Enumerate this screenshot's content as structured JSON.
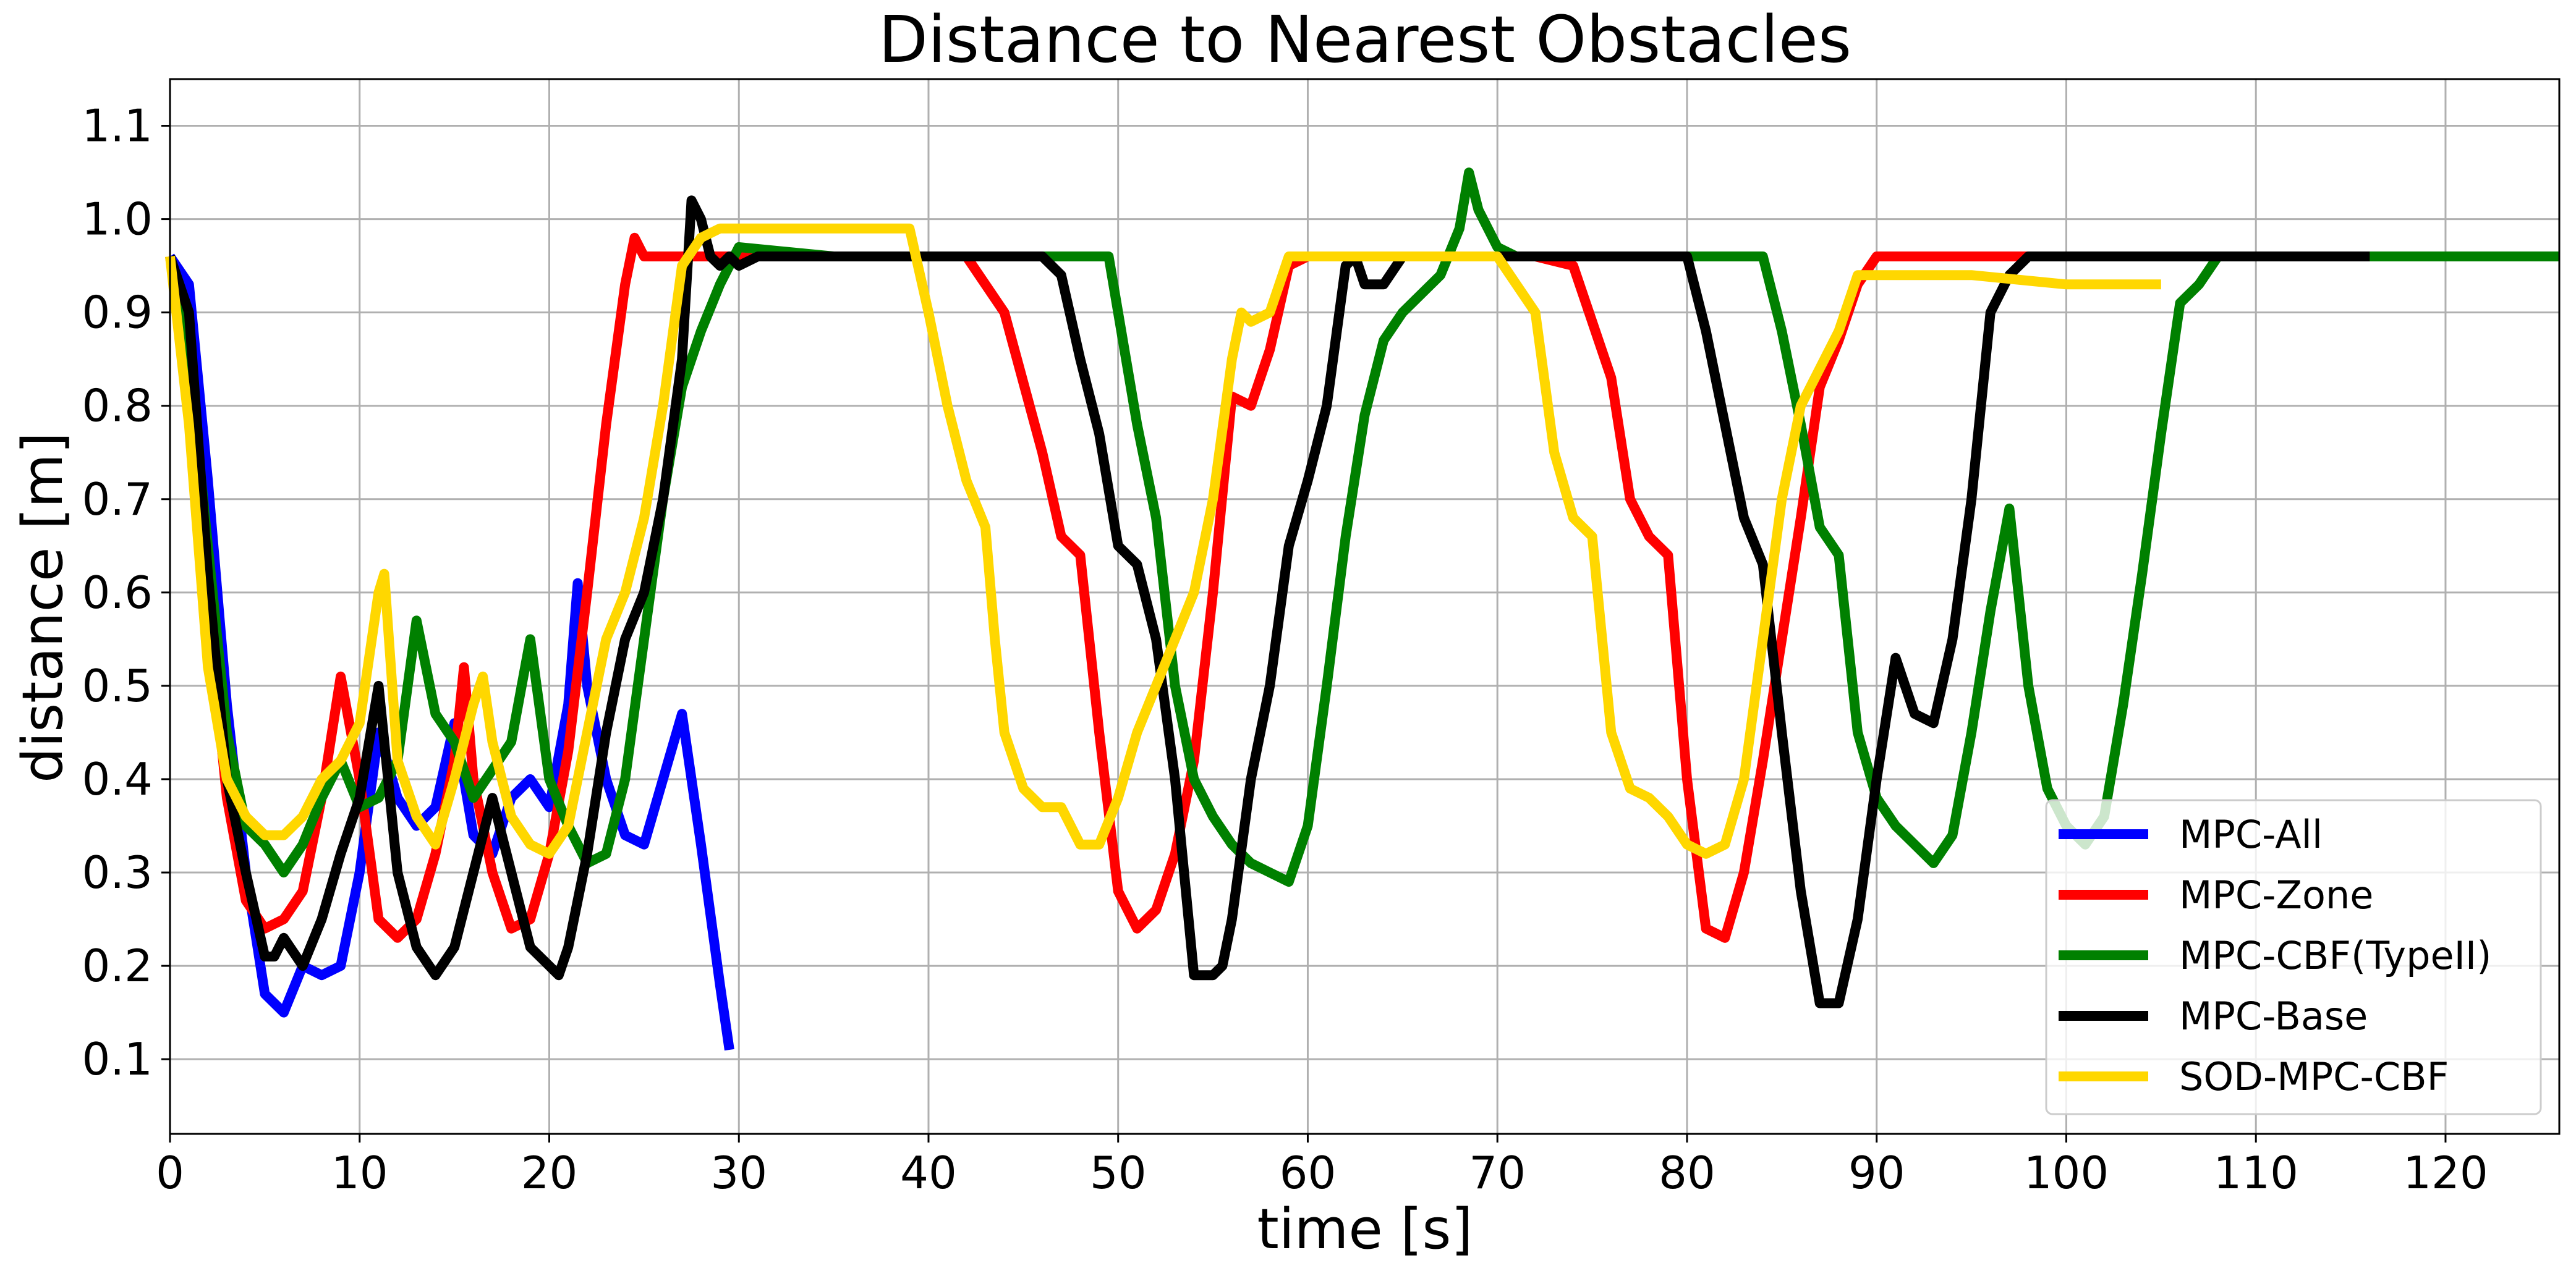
{
  "chart_data": {
    "type": "line",
    "title": "Distance to Nearest Obstacles",
    "xlabel": "time [s]",
    "ylabel": "distance [m]",
    "xlim": [
      0,
      126
    ],
    "ylim": [
      0.02,
      1.15
    ],
    "xticks": [
      0,
      10,
      20,
      30,
      40,
      50,
      60,
      70,
      80,
      90,
      100,
      110,
      120
    ],
    "yticks": [
      0.1,
      0.2,
      0.3,
      0.4,
      0.5,
      0.6,
      0.7,
      0.8,
      0.9,
      1.0,
      1.1
    ],
    "ytick_labels": [
      "0.1",
      "0.2",
      "0.3",
      "0.4",
      "0.5",
      "0.6",
      "0.7",
      "0.8",
      "0.9",
      "1.0",
      "1.1"
    ],
    "grid": true,
    "legend_position": "bottom-right",
    "series": [
      {
        "name": "MPC-All",
        "color": "#0000ff",
        "x": [
          0,
          1,
          2,
          3,
          4,
          5,
          6,
          7,
          8,
          9,
          10,
          11,
          12,
          13,
          14,
          15,
          16,
          17,
          18,
          19,
          20,
          21,
          21.5,
          22,
          23,
          24,
          25,
          26,
          27,
          28,
          29,
          29.5
        ],
        "y": [
          0.96,
          0.93,
          0.72,
          0.48,
          0.3,
          0.17,
          0.15,
          0.2,
          0.19,
          0.2,
          0.3,
          0.45,
          0.38,
          0.35,
          0.37,
          0.46,
          0.34,
          0.32,
          0.38,
          0.4,
          0.37,
          0.48,
          0.61,
          0.5,
          0.4,
          0.34,
          0.33,
          0.4,
          0.47,
          0.33,
          0.18,
          0.11
        ]
      },
      {
        "name": "MPC-Zone",
        "color": "#ff0000",
        "x": [
          0,
          1,
          2,
          3,
          4,
          5,
          6,
          7,
          8,
          9,
          10,
          11,
          12,
          13,
          14,
          15,
          15.5,
          16,
          17,
          18,
          19,
          20,
          21,
          22,
          23,
          24,
          24.5,
          25,
          30,
          39,
          42,
          44,
          46,
          47,
          48,
          49,
          50,
          51,
          52,
          53,
          54,
          55,
          56,
          57,
          58,
          59,
          60,
          62,
          70,
          72,
          74,
          76,
          77,
          78,
          79,
          80,
          81,
          82,
          83,
          84,
          85,
          86,
          87,
          88,
          89,
          90,
          100,
          116
        ],
        "y": [
          0.96,
          0.82,
          0.58,
          0.38,
          0.27,
          0.24,
          0.25,
          0.28,
          0.38,
          0.51,
          0.4,
          0.25,
          0.23,
          0.25,
          0.32,
          0.42,
          0.52,
          0.4,
          0.3,
          0.24,
          0.25,
          0.32,
          0.43,
          0.6,
          0.78,
          0.93,
          0.98,
          0.96,
          0.96,
          0.96,
          0.96,
          0.9,
          0.75,
          0.66,
          0.64,
          0.45,
          0.28,
          0.24,
          0.26,
          0.32,
          0.42,
          0.6,
          0.81,
          0.8,
          0.86,
          0.95,
          0.96,
          0.96,
          0.96,
          0.96,
          0.95,
          0.83,
          0.7,
          0.66,
          0.64,
          0.4,
          0.24,
          0.23,
          0.3,
          0.42,
          0.55,
          0.68,
          0.82,
          0.87,
          0.93,
          0.96,
          0.96,
          0.96
        ]
      },
      {
        "name": "MPC-CBF(TypeII)",
        "color": "#008000",
        "x": [
          0,
          1,
          2,
          3,
          4,
          5,
          6,
          7,
          8,
          9,
          10,
          11,
          12,
          13,
          14,
          15,
          16,
          17,
          18,
          19,
          20,
          21,
          22,
          23,
          24,
          25,
          26,
          27,
          28,
          29,
          30,
          35,
          40,
          45,
          49.5,
          50,
          51,
          52,
          53,
          54,
          55,
          56,
          57,
          58,
          59,
          60,
          61,
          62,
          63,
          64,
          65,
          66,
          67,
          68,
          68.5,
          69,
          70,
          71,
          72,
          75,
          80,
          84,
          85,
          86,
          87,
          88,
          89,
          90,
          91,
          92,
          93,
          94,
          95,
          96,
          97,
          98,
          99,
          100,
          101,
          102,
          103,
          104,
          105,
          106,
          107,
          108,
          110,
          116,
          126
        ],
        "y": [
          0.96,
          0.85,
          0.65,
          0.45,
          0.35,
          0.33,
          0.3,
          0.33,
          0.38,
          0.42,
          0.37,
          0.38,
          0.42,
          0.57,
          0.47,
          0.44,
          0.38,
          0.41,
          0.44,
          0.55,
          0.4,
          0.35,
          0.31,
          0.32,
          0.4,
          0.55,
          0.7,
          0.82,
          0.88,
          0.93,
          0.97,
          0.96,
          0.96,
          0.96,
          0.96,
          0.9,
          0.78,
          0.68,
          0.5,
          0.4,
          0.36,
          0.33,
          0.31,
          0.3,
          0.29,
          0.35,
          0.5,
          0.66,
          0.79,
          0.87,
          0.9,
          0.92,
          0.94,
          0.99,
          1.05,
          1.01,
          0.97,
          0.96,
          0.96,
          0.96,
          0.96,
          0.96,
          0.88,
          0.78,
          0.67,
          0.64,
          0.45,
          0.38,
          0.35,
          0.33,
          0.31,
          0.34,
          0.45,
          0.58,
          0.69,
          0.5,
          0.39,
          0.35,
          0.33,
          0.36,
          0.48,
          0.62,
          0.77,
          0.91,
          0.93,
          0.96,
          0.96,
          0.96,
          0.96
        ]
      },
      {
        "name": "MPC-Base",
        "color": "#000000",
        "x": [
          0,
          1,
          2,
          3,
          4,
          5,
          5.5,
          6,
          7,
          8,
          9,
          10,
          11,
          12,
          13,
          14,
          15,
          16,
          17,
          18,
          19,
          20,
          20.5,
          21,
          22,
          23,
          24,
          25,
          26,
          27,
          27.5,
          28,
          28.5,
          29,
          29.5,
          30,
          31,
          40,
          46,
          47,
          48,
          49,
          50,
          51,
          52,
          53,
          54,
          55,
          55.5,
          56,
          57,
          58,
          59,
          60,
          61,
          62,
          62.5,
          63,
          64,
          65,
          66,
          70,
          80,
          81,
          82,
          83,
          84,
          85,
          86,
          87,
          88,
          89,
          90,
          91,
          92,
          93,
          94,
          95,
          96,
          97,
          98,
          100,
          116
        ],
        "y": [
          0.96,
          0.9,
          0.62,
          0.4,
          0.3,
          0.21,
          0.21,
          0.23,
          0.2,
          0.25,
          0.32,
          0.38,
          0.5,
          0.3,
          0.22,
          0.19,
          0.22,
          0.3,
          0.38,
          0.3,
          0.22,
          0.2,
          0.19,
          0.22,
          0.32,
          0.45,
          0.55,
          0.6,
          0.7,
          0.85,
          1.02,
          1.0,
          0.96,
          0.95,
          0.96,
          0.95,
          0.96,
          0.96,
          0.96,
          0.94,
          0.85,
          0.77,
          0.65,
          0.63,
          0.55,
          0.4,
          0.19,
          0.19,
          0.2,
          0.25,
          0.4,
          0.5,
          0.65,
          0.72,
          0.8,
          0.95,
          0.96,
          0.93,
          0.93,
          0.96,
          0.96,
          0.96,
          0.96,
          0.88,
          0.78,
          0.68,
          0.63,
          0.45,
          0.28,
          0.16,
          0.16,
          0.25,
          0.4,
          0.53,
          0.47,
          0.46,
          0.55,
          0.7,
          0.9,
          0.94,
          0.96,
          0.96,
          0.96
        ]
      },
      {
        "name": "SOD-MPC-CBF",
        "color": "#ffd700",
        "x": [
          0,
          1,
          2,
          3,
          4,
          5,
          6,
          7,
          8,
          9,
          10,
          11,
          11.3,
          12,
          13,
          14,
          15,
          16,
          16.5,
          17,
          18,
          19,
          20,
          21,
          22,
          23,
          24,
          25,
          26,
          27,
          28,
          29,
          30,
          35,
          39,
          40,
          41,
          42,
          43,
          43.5,
          44,
          45,
          46,
          47,
          48,
          49,
          50,
          51,
          52,
          53,
          54,
          55,
          56,
          56.5,
          57,
          58,
          59,
          60,
          65,
          70,
          72,
          73,
          74,
          75,
          76,
          77,
          78,
          79,
          80,
          81,
          82,
          83,
          84,
          85,
          86,
          87,
          88,
          89,
          90,
          95,
          100,
          105
        ],
        "y": [
          0.96,
          0.78,
          0.52,
          0.4,
          0.36,
          0.34,
          0.34,
          0.36,
          0.4,
          0.42,
          0.46,
          0.6,
          0.62,
          0.42,
          0.36,
          0.33,
          0.4,
          0.48,
          0.51,
          0.44,
          0.36,
          0.33,
          0.32,
          0.35,
          0.45,
          0.55,
          0.6,
          0.68,
          0.8,
          0.95,
          0.98,
          0.99,
          0.99,
          0.99,
          0.99,
          0.9,
          0.8,
          0.72,
          0.67,
          0.55,
          0.45,
          0.39,
          0.37,
          0.37,
          0.33,
          0.33,
          0.38,
          0.45,
          0.5,
          0.55,
          0.6,
          0.7,
          0.85,
          0.9,
          0.89,
          0.9,
          0.96,
          0.96,
          0.96,
          0.96,
          0.9,
          0.75,
          0.68,
          0.66,
          0.45,
          0.39,
          0.38,
          0.36,
          0.33,
          0.32,
          0.33,
          0.4,
          0.55,
          0.7,
          0.8,
          0.84,
          0.88,
          0.94,
          0.94,
          0.94,
          0.93,
          0.93
        ]
      }
    ]
  }
}
